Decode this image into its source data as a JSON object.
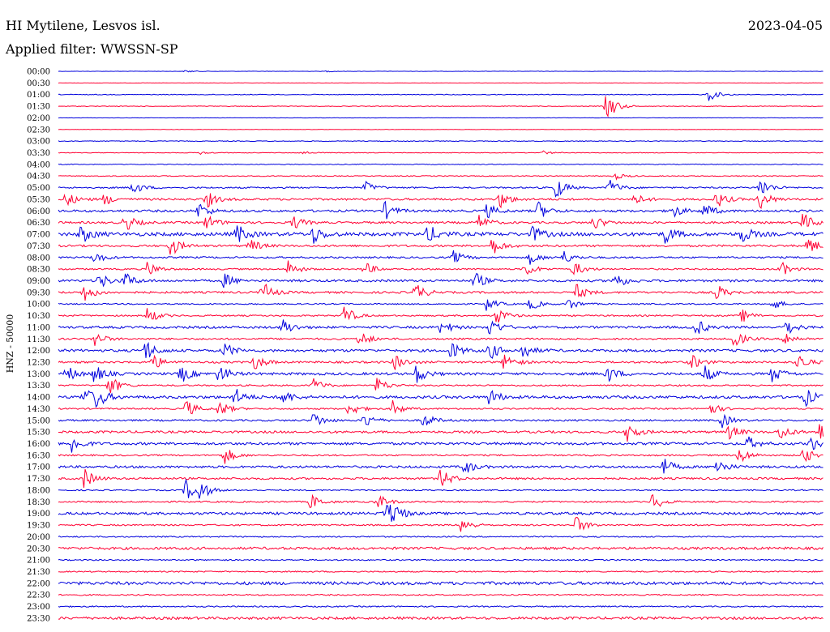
{
  "header": {
    "station": "HI Mytilene, Lesvos isl.",
    "date": "2023-04-05",
    "filter": "Applied filter: WWSSN-SP"
  },
  "channel_label": "HNZ - 50000",
  "colors": {
    "even_hour": "#0000dd",
    "half_hour": "#ff0033",
    "text": "#000000"
  },
  "chart_data": {
    "type": "line",
    "subtype": "helicorder",
    "xlabel": "",
    "ylabel": "HNZ - 50000",
    "x_unit": "minutes into row",
    "xlim": [
      0,
      30
    ],
    "grid": false,
    "legend": "none",
    "rows": [
      {
        "label": "00:00",
        "noise": 0.15,
        "events": [
          [
            5.0,
            0.15
          ],
          [
            10.5,
            0.1
          ]
        ]
      },
      {
        "label": "00:30",
        "noise": 0.12,
        "events": []
      },
      {
        "label": "01:00",
        "noise": 0.3,
        "events": [
          [
            25.5,
            0.9
          ]
        ]
      },
      {
        "label": "01:30",
        "noise": 0.25,
        "events": [
          [
            21.5,
            2.2
          ]
        ]
      },
      {
        "label": "02:00",
        "noise": 0.15,
        "events": []
      },
      {
        "label": "02:30",
        "noise": 0.12,
        "events": []
      },
      {
        "label": "03:00",
        "noise": 0.3,
        "events": []
      },
      {
        "label": "03:30",
        "noise": 0.25,
        "events": [
          [
            5.5,
            0.25
          ],
          [
            9.5,
            0.25
          ],
          [
            19.0,
            0.25
          ]
        ]
      },
      {
        "label": "04:00",
        "noise": 0.3,
        "events": []
      },
      {
        "label": "04:30",
        "noise": 0.35,
        "events": [
          [
            21.8,
            0.5
          ]
        ]
      },
      {
        "label": "05:00",
        "noise": 0.6,
        "events": [
          [
            2.9,
            1.0
          ],
          [
            12.0,
            0.9
          ],
          [
            19.5,
            1.6
          ],
          [
            21.6,
            1.2
          ],
          [
            27.5,
            1.4
          ]
        ]
      },
      {
        "label": "05:30",
        "noise": 0.8,
        "events": [
          [
            0.3,
            1.0
          ],
          [
            1.8,
            0.8
          ],
          [
            5.8,
            1.2
          ],
          [
            17.3,
            1.2
          ],
          [
            22.5,
            1.0
          ],
          [
            25.8,
            1.2
          ],
          [
            27.5,
            1.4
          ]
        ]
      },
      {
        "label": "06:00",
        "noise": 0.9,
        "events": [
          [
            5.5,
            1.2
          ],
          [
            12.8,
            1.2
          ],
          [
            16.8,
            1.0
          ],
          [
            18.8,
            1.3
          ],
          [
            24.0,
            1.2
          ],
          [
            25.3,
            1.1
          ]
        ]
      },
      {
        "label": "06:30",
        "noise": 0.8,
        "events": [
          [
            2.6,
            1.3
          ],
          [
            5.8,
            1.1
          ],
          [
            9.2,
            1.0
          ],
          [
            16.5,
            1.0
          ],
          [
            21.0,
            1.0
          ],
          [
            29.2,
            1.4
          ]
        ]
      },
      {
        "label": "07:00",
        "noise": 1.4,
        "events": [
          [
            0.9,
            1.3
          ],
          [
            7.0,
            1.3
          ],
          [
            10.0,
            1.2
          ],
          [
            14.5,
            1.3
          ],
          [
            18.6,
            1.1
          ],
          [
            23.8,
            1.2
          ],
          [
            26.8,
            1.2
          ]
        ]
      },
      {
        "label": "07:30",
        "noise": 0.8,
        "events": [
          [
            4.4,
            1.4
          ],
          [
            7.5,
            1.0
          ],
          [
            17.0,
            1.3
          ],
          [
            29.4,
            1.2
          ]
        ]
      },
      {
        "label": "08:00",
        "noise": 0.7,
        "events": [
          [
            1.4,
            0.9
          ],
          [
            15.5,
            0.9
          ],
          [
            18.5,
            0.9
          ],
          [
            19.8,
            0.9
          ]
        ]
      },
      {
        "label": "08:30",
        "noise": 0.6,
        "events": [
          [
            3.5,
            1.1
          ],
          [
            9.0,
            1.2
          ],
          [
            12.0,
            1.0
          ],
          [
            18.3,
            1.1
          ],
          [
            20.2,
            1.1
          ],
          [
            28.3,
            1.1
          ]
        ]
      },
      {
        "label": "09:00",
        "noise": 0.9,
        "events": [
          [
            1.6,
            1.1
          ],
          [
            2.6,
            1.1
          ],
          [
            6.5,
            1.0
          ],
          [
            16.3,
            1.3
          ],
          [
            21.8,
            1.3
          ]
        ]
      },
      {
        "label": "09:30",
        "noise": 0.8,
        "events": [
          [
            1.0,
            1.3
          ],
          [
            8.0,
            1.5
          ],
          [
            14.0,
            1.3
          ],
          [
            20.3,
            1.1
          ],
          [
            25.8,
            1.1
          ]
        ]
      },
      {
        "label": "10:00",
        "noise": 0.5,
        "events": [
          [
            16.8,
            1.0
          ],
          [
            18.5,
            0.9
          ],
          [
            20.0,
            0.9
          ],
          [
            28.0,
            0.8
          ]
        ]
      },
      {
        "label": "10:30",
        "noise": 0.6,
        "events": [
          [
            3.5,
            1.2
          ],
          [
            11.2,
            1.4
          ],
          [
            17.2,
            1.2
          ],
          [
            26.8,
            0.9
          ]
        ]
      },
      {
        "label": "11:00",
        "noise": 0.9,
        "events": [
          [
            8.8,
            1.2
          ],
          [
            15.0,
            1.1
          ],
          [
            16.9,
            1.4
          ],
          [
            25.0,
            1.2
          ],
          [
            28.5,
            1.2
          ]
        ]
      },
      {
        "label": "11:30",
        "noise": 0.7,
        "events": [
          [
            1.4,
            1.1
          ],
          [
            11.8,
            1.2
          ],
          [
            26.5,
            1.2
          ],
          [
            28.5,
            1.0
          ]
        ]
      },
      {
        "label": "12:00",
        "noise": 1.0,
        "events": [
          [
            3.4,
            1.5
          ],
          [
            6.5,
            1.1
          ],
          [
            15.4,
            1.2
          ],
          [
            16.9,
            1.3
          ],
          [
            18.2,
            1.1
          ]
        ]
      },
      {
        "label": "12:30",
        "noise": 0.8,
        "events": [
          [
            3.7,
            1.1
          ],
          [
            7.7,
            1.1
          ],
          [
            13.2,
            1.1
          ],
          [
            17.5,
            1.3
          ],
          [
            24.8,
            1.1
          ],
          [
            29.0,
            1.2
          ]
        ]
      },
      {
        "label": "13:00",
        "noise": 1.0,
        "events": [
          [
            0.3,
            1.2
          ],
          [
            1.4,
            1.3
          ],
          [
            4.8,
            1.3
          ],
          [
            6.3,
            1.3
          ],
          [
            14.0,
            1.4
          ],
          [
            21.5,
            1.2
          ],
          [
            25.3,
            1.3
          ],
          [
            28.0,
            1.2
          ]
        ]
      },
      {
        "label": "13:30",
        "noise": 0.6,
        "events": [
          [
            2.0,
            1.5
          ],
          [
            10.0,
            1.0
          ],
          [
            12.5,
            1.1
          ]
        ]
      },
      {
        "label": "14:00",
        "noise": 1.1,
        "events": [
          [
            1.0,
            1.4
          ],
          [
            1.5,
            1.4
          ],
          [
            6.9,
            1.3
          ],
          [
            8.8,
            1.0
          ],
          [
            16.9,
            1.2
          ],
          [
            29.3,
            1.2
          ]
        ]
      },
      {
        "label": "14:30",
        "noise": 0.6,
        "events": [
          [
            5.0,
            1.3
          ],
          [
            6.3,
            1.2
          ],
          [
            11.4,
            1.1
          ],
          [
            13.1,
            1.1
          ],
          [
            25.5,
            1.0
          ]
        ]
      },
      {
        "label": "15:00",
        "noise": 0.7,
        "events": [
          [
            10.0,
            1.2
          ],
          [
            12.0,
            1.1
          ],
          [
            14.3,
            1.1
          ],
          [
            26.0,
            1.0
          ]
        ]
      },
      {
        "label": "15:30",
        "noise": 0.9,
        "events": [
          [
            22.3,
            1.4
          ],
          [
            26.3,
            1.0
          ],
          [
            28.3,
            1.1
          ],
          [
            29.8,
            1.5
          ]
        ]
      },
      {
        "label": "16:00",
        "noise": 1.0,
        "events": [
          [
            0.5,
            1.4
          ],
          [
            27.0,
            1.0
          ],
          [
            29.5,
            1.0
          ]
        ]
      },
      {
        "label": "16:30",
        "noise": 0.6,
        "events": [
          [
            6.5,
            1.3
          ],
          [
            26.7,
            1.2
          ],
          [
            29.2,
            1.2
          ]
        ]
      },
      {
        "label": "17:00",
        "noise": 0.9,
        "events": [
          [
            15.9,
            1.1
          ],
          [
            23.7,
            1.3
          ],
          [
            25.8,
            1.2
          ]
        ]
      },
      {
        "label": "17:30",
        "noise": 0.8,
        "events": [
          [
            1.0,
            1.4
          ],
          [
            15.0,
            1.4
          ]
        ]
      },
      {
        "label": "18:00",
        "noise": 0.5,
        "events": [
          [
            5.0,
            1.5
          ],
          [
            5.5,
            1.5
          ]
        ]
      },
      {
        "label": "18:30",
        "noise": 0.6,
        "events": [
          [
            9.9,
            1.1
          ],
          [
            12.5,
            1.1
          ],
          [
            23.3,
            1.3
          ]
        ]
      },
      {
        "label": "19:00",
        "noise": 1.0,
        "events": [
          [
            12.8,
            1.5
          ],
          [
            13.1,
            1.2
          ]
        ]
      },
      {
        "label": "19:30",
        "noise": 0.6,
        "events": [
          [
            15.8,
            1.2
          ],
          [
            20.3,
            1.3
          ]
        ]
      },
      {
        "label": "20:00",
        "noise": 0.5,
        "events": []
      },
      {
        "label": "20:30",
        "noise": 1.0,
        "events": []
      },
      {
        "label": "21:00",
        "noise": 0.5,
        "events": []
      },
      {
        "label": "21:30",
        "noise": 0.5,
        "events": []
      },
      {
        "label": "22:00",
        "noise": 1.2,
        "events": []
      },
      {
        "label": "22:30",
        "noise": 0.5,
        "events": []
      },
      {
        "label": "23:00",
        "noise": 0.5,
        "events": []
      },
      {
        "label": "23:30",
        "noise": 1.0,
        "events": []
      }
    ]
  }
}
